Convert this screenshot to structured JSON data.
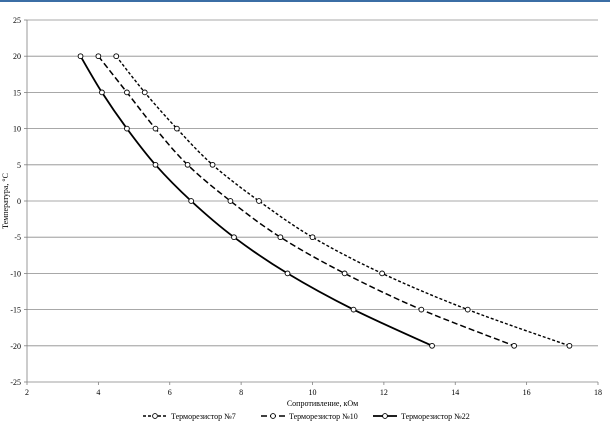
{
  "chart_data": {
    "type": "scatter",
    "title": "",
    "xlabel": "Сопротивление, кОм",
    "ylabel": "Температура, °С",
    "xlim": [
      2,
      18
    ],
    "ylim": [
      -25,
      25
    ],
    "x_ticks": [
      2,
      4,
      6,
      8,
      10,
      12,
      14,
      16,
      18
    ],
    "y_ticks": [
      -25,
      -20,
      -15,
      -10,
      -5,
      0,
      5,
      10,
      15,
      20,
      25
    ],
    "grid": "horizontal",
    "legend_position": "bottom",
    "series": [
      {
        "name": "Терморезистор №7",
        "line_style": "dotted",
        "color": "#000000",
        "x": [
          4.5,
          5.3,
          6.2,
          7.2,
          8.5,
          10.0,
          11.95,
          14.35,
          17.2
        ],
        "y": [
          20,
          15,
          10,
          5,
          0,
          -5,
          -10,
          -15,
          -20
        ]
      },
      {
        "name": "Терморезистор №10",
        "line_style": "dashed",
        "color": "#000000",
        "x": [
          4.0,
          4.8,
          5.6,
          6.5,
          7.7,
          9.1,
          10.9,
          13.05,
          15.65
        ],
        "y": [
          20,
          15,
          10,
          5,
          0,
          -5,
          -10,
          -15,
          -20
        ]
      },
      {
        "name": "Терморезистор №22",
        "line_style": "solid",
        "color": "#000000",
        "x": [
          3.5,
          4.1,
          4.8,
          5.6,
          6.6,
          7.8,
          9.3,
          11.15,
          13.35
        ],
        "y": [
          20,
          15,
          10,
          5,
          0,
          -5,
          -10,
          -15,
          -20
        ]
      }
    ]
  }
}
